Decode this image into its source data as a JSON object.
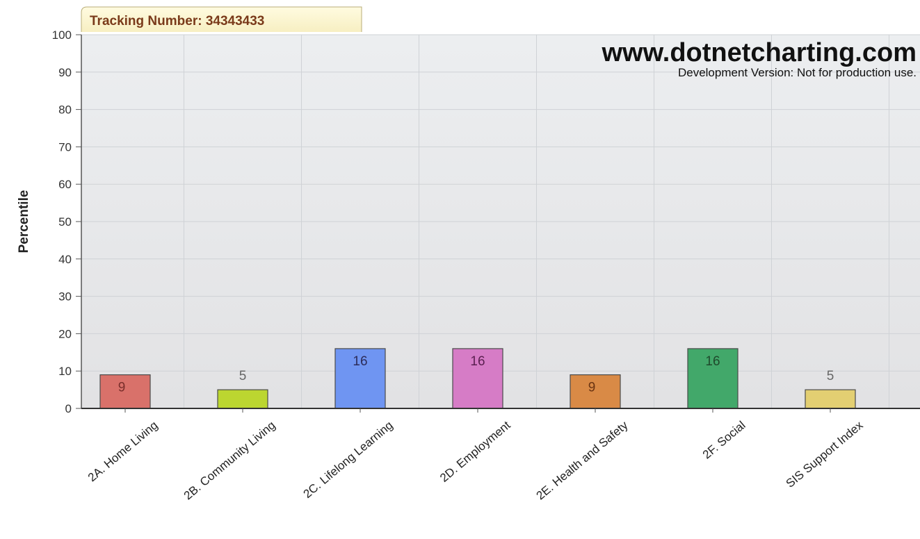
{
  "header": {
    "tracking_label": "Tracking Number: 34343433"
  },
  "watermark": {
    "url": "www.dotnetcharting.com",
    "note": "Development Version: Not for production use."
  },
  "chart_data": {
    "type": "bar",
    "title": "",
    "xlabel": "",
    "ylabel": "Percentile",
    "ylim": [
      0,
      100
    ],
    "yticks": [
      0,
      10,
      20,
      30,
      40,
      50,
      60,
      70,
      80,
      90,
      100
    ],
    "grid": true,
    "categories": [
      "2A. Home Living",
      "2B. Community Living",
      "2C. Lifelong Learning",
      "2D. Employment",
      "2E. Health and Safety",
      "2F. Social",
      "SIS Support Index"
    ],
    "values": [
      9,
      5,
      16,
      16,
      9,
      16,
      5
    ],
    "colors": [
      "#d9716a",
      "#bcd630",
      "#6f95f2",
      "#d67cc6",
      "#d98a46",
      "#42a86a",
      "#e3cf72"
    ],
    "label_colors": [
      "#7a2e2b",
      "#666666",
      "#2c2c5a",
      "#5a1f50",
      "#6a3412",
      "#1f4a2c",
      "#666666"
    ],
    "label_positions": [
      "inside",
      "above",
      "inside",
      "inside",
      "inside",
      "inside",
      "above"
    ]
  }
}
